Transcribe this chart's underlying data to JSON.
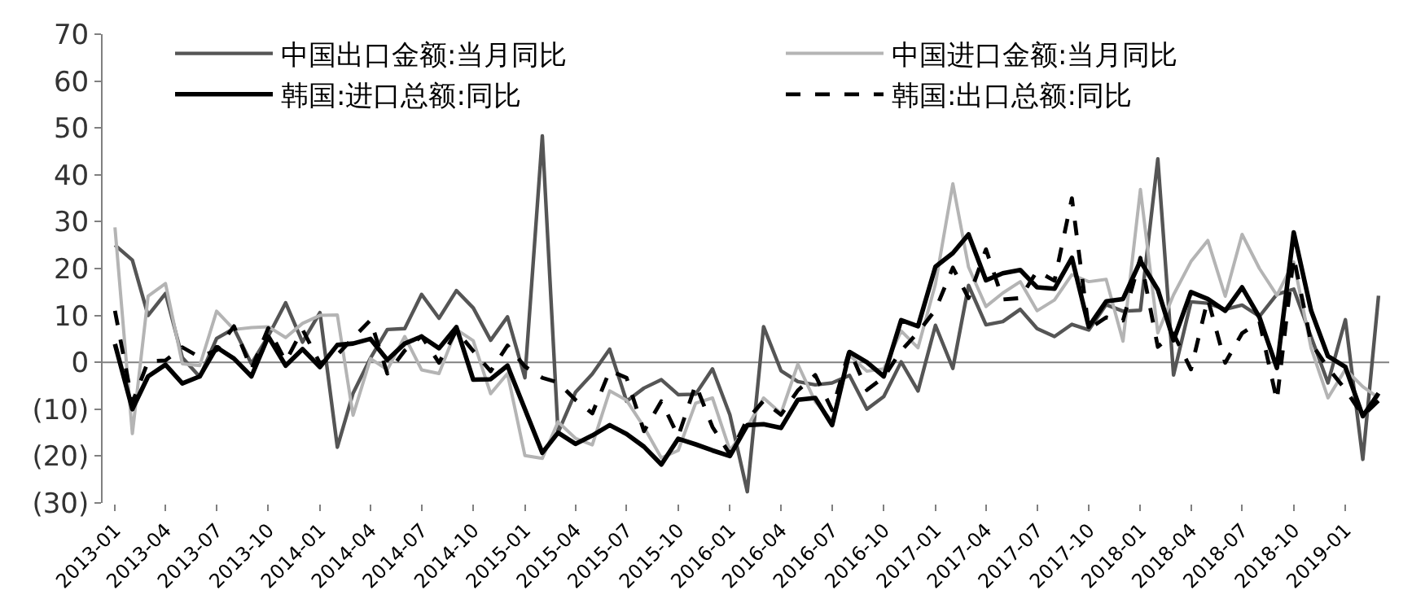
{
  "chart_data": {
    "type": "line",
    "x": [
      "2013-01",
      "2013-02",
      "2013-03",
      "2013-04",
      "2013-05",
      "2013-06",
      "2013-07",
      "2013-08",
      "2013-09",
      "2013-10",
      "2013-11",
      "2013-12",
      "2014-01",
      "2014-02",
      "2014-03",
      "2014-04",
      "2014-05",
      "2014-06",
      "2014-07",
      "2014-08",
      "2014-09",
      "2014-10",
      "2014-11",
      "2014-12",
      "2015-01",
      "2015-02",
      "2015-03",
      "2015-04",
      "2015-05",
      "2015-06",
      "2015-07",
      "2015-08",
      "2015-09",
      "2015-10",
      "2015-11",
      "2015-12",
      "2016-01",
      "2016-02",
      "2016-03",
      "2016-04",
      "2016-05",
      "2016-06",
      "2016-07",
      "2016-08",
      "2016-09",
      "2016-10",
      "2016-11",
      "2016-12",
      "2017-01",
      "2017-02",
      "2017-03",
      "2017-04",
      "2017-05",
      "2017-06",
      "2017-07",
      "2017-08",
      "2017-09",
      "2017-10",
      "2017-11",
      "2017-12",
      "2018-01",
      "2018-02",
      "2018-03",
      "2018-04",
      "2018-05",
      "2018-06",
      "2018-07",
      "2018-08",
      "2018-09",
      "2018-10",
      "2018-11",
      "2018-12",
      "2019-01",
      "2019-02",
      "2019-03"
    ],
    "xlim": [
      "2012-12-10",
      "2019-03-20"
    ],
    "xticks": [
      "2013-01",
      "2013-04",
      "2013-07",
      "2013-10",
      "2014-01",
      "2014-04",
      "2014-07",
      "2014-10",
      "2015-01",
      "2015-04",
      "2015-07",
      "2015-10",
      "2016-01",
      "2016-04",
      "2016-07",
      "2016-10",
      "2017-01",
      "2017-04",
      "2017-07",
      "2017-10",
      "2018-01",
      "2018-04",
      "2018-07",
      "2018-10",
      "2019-01"
    ],
    "ylim": [
      -30,
      70
    ],
    "yticks": [
      {
        "value": -30,
        "label": "(30)"
      },
      {
        "value": -20,
        "label": "(20)"
      },
      {
        "value": -10,
        "label": "(10)"
      },
      0,
      10,
      20,
      30,
      40,
      50,
      60,
      70
    ],
    "grid": false,
    "legend": "top",
    "marker": "none",
    "ref_lines": [
      {
        "axis": "y",
        "value": 0,
        "color": "#808080"
      }
    ],
    "series": [
      {
        "name": "中国出口金额:当月同比",
        "color": "#555555",
        "values": [
          25.0,
          21.8,
          10.0,
          14.7,
          1.0,
          -3.1,
          5.1,
          7.2,
          -0.3,
          5.6,
          12.7,
          4.3,
          10.6,
          -18.1,
          -6.6,
          0.9,
          7.0,
          7.2,
          14.5,
          9.4,
          15.3,
          11.6,
          4.7,
          9.7,
          -3.3,
          48.3,
          -15.0,
          -6.4,
          -2.5,
          2.8,
          -8.3,
          -5.5,
          -3.7,
          -6.9,
          -6.8,
          -1.4,
          -11.2,
          -27.6,
          7.6,
          -1.8,
          -4.1,
          -4.8,
          -4.4,
          -2.8,
          -10.0,
          -7.3,
          0.1,
          -6.1,
          7.9,
          -1.3,
          16.4,
          8.0,
          8.7,
          11.3,
          7.2,
          5.5,
          8.1,
          6.9,
          12.3,
          10.9,
          11.1,
          43.4,
          -2.7,
          12.9,
          12.6,
          11.3,
          12.2,
          9.8,
          14.5,
          15.6,
          5.4,
          -4.4,
          9.1,
          -20.7,
          14.2
        ]
      },
      {
        "name": "中国进口金额:当月同比",
        "color": "#b4b4b4",
        "values": [
          28.8,
          -15.2,
          14.1,
          16.8,
          -0.3,
          -0.7,
          10.9,
          7.0,
          7.4,
          7.6,
          5.3,
          8.3,
          10.0,
          10.1,
          -11.3,
          0.8,
          -1.6,
          5.5,
          -1.6,
          -2.4,
          7.0,
          4.6,
          -6.7,
          -2.4,
          -19.9,
          -20.5,
          -12.7,
          -16.2,
          -17.6,
          -6.1,
          -8.1,
          -13.8,
          -20.4,
          -18.8,
          -8.7,
          -7.6,
          -18.8,
          -13.8,
          -7.6,
          -10.9,
          -0.4,
          -8.4,
          -12.5,
          1.5,
          -1.9,
          -1.4,
          6.7,
          3.1,
          16.7,
          38.1,
          20.3,
          11.9,
          14.8,
          17.2,
          11.0,
          13.3,
          18.7,
          17.2,
          17.7,
          4.5,
          36.9,
          6.3,
          14.4,
          21.5,
          26.0,
          14.1,
          27.3,
          20.0,
          14.3,
          21.4,
          3.0,
          -7.6,
          -1.5,
          -5.2,
          -7.6
        ]
      },
      {
        "name": "韩国:进口总额:同比",
        "color": "#000000",
        "line_style": "solid",
        "values": [
          3.9,
          -10,
          -3,
          -0.5,
          -4.5,
          -3,
          3.2,
          0.8,
          -3,
          5.5,
          -0.7,
          2.8,
          -1,
          3.7,
          4,
          5,
          0.5,
          4,
          5.5,
          3,
          7.5,
          -3.7,
          -3.6,
          -0.7,
          -10,
          -19.3,
          -15,
          -17.4,
          -15.6,
          -13.4,
          -15.3,
          -18,
          -21.8,
          -16.3,
          -17.5,
          -18.8,
          -20,
          -13.4,
          -13.2,
          -14,
          -8,
          -7.6,
          -13.4,
          2.2,
          0,
          -3,
          9,
          7.7,
          20.4,
          23.3,
          27.3,
          17.5,
          19,
          19.7,
          16,
          15.7,
          22.3,
          7.6,
          13,
          13.5,
          21.6,
          15.5,
          4.7,
          15,
          13.5,
          11,
          16,
          9.6,
          -1.2,
          27.7,
          11,
          1.3,
          -1,
          -11.5,
          -6.6
        ]
      },
      {
        "name": "韩国:出口总额:同比",
        "color": "#000000",
        "line_style": "dashed",
        "values": [
          11.0,
          -8.6,
          0.2,
          0.4,
          3.2,
          1.1,
          2.6,
          7.7,
          -1.5,
          7.3,
          0.2,
          7.0,
          -0.2,
          1.6,
          5.2,
          9.0,
          -2.4,
          2.5,
          5.6,
          -0.1,
          6.8,
          2.4,
          -1.9,
          3.6,
          -0.9,
          -3.3,
          -4.3,
          -8.0,
          -10.9,
          -1.8,
          -3.3,
          -14.7,
          -8.3,
          -15.8,
          -4.7,
          -13.8,
          -19.6,
          -12.2,
          -8.2,
          -11.2,
          -6.0,
          -2.7,
          -10.2,
          2.6,
          -5.9,
          -3.2,
          2.5,
          6.4,
          11.2,
          20.2,
          13.7,
          24.1,
          13.4,
          13.7,
          19.5,
          17.4,
          35.0,
          7.1,
          9.6,
          8.9,
          22.3,
          3.3,
          6.1,
          -1.5,
          13.5,
          -0.1,
          6.2,
          8.7,
          -8.2,
          22.5,
          4.1,
          -1.2,
          -5.8,
          -11.4,
          -8.2
        ]
      }
    ]
  }
}
